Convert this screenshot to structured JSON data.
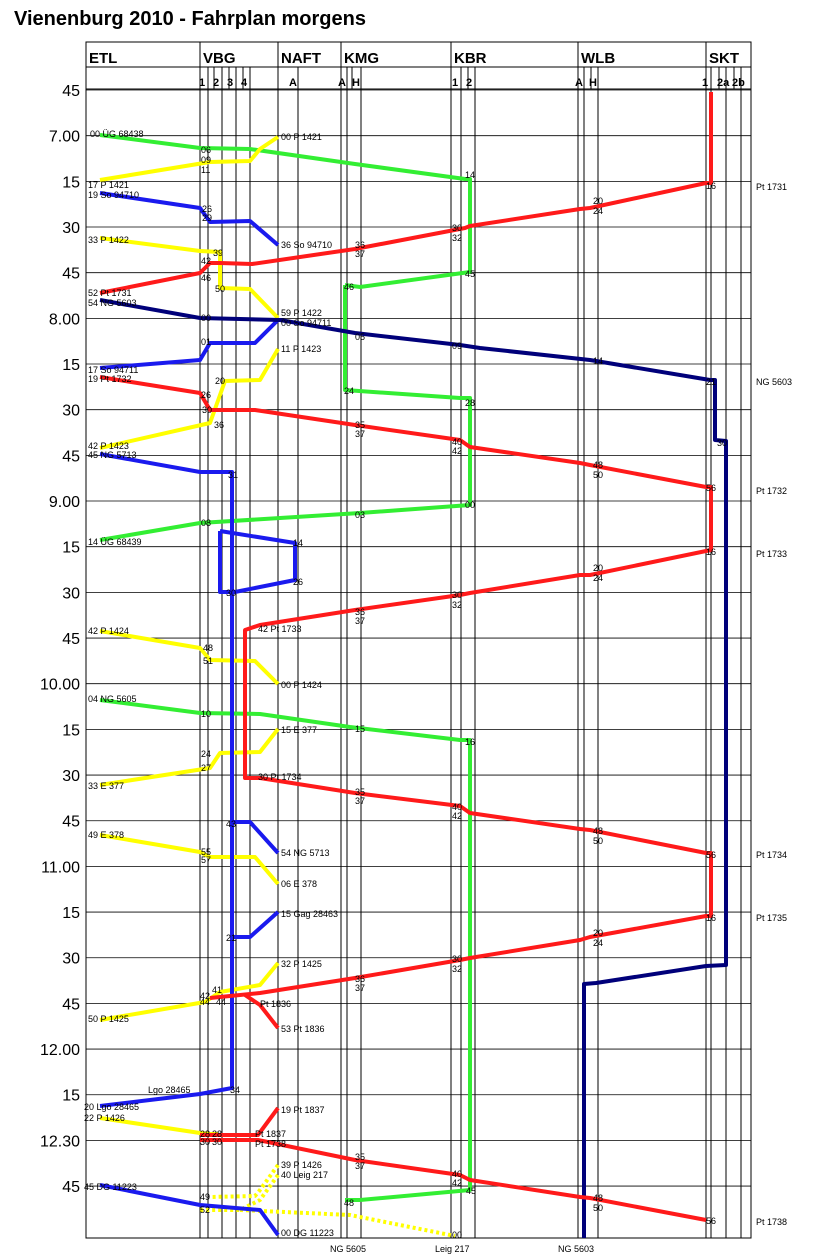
{
  "title": "Vienenburg 2010 - Fahrplan morgens",
  "stations": [
    {
      "id": "ETL",
      "name": "ETL",
      "tracks": []
    },
    {
      "id": "VBG",
      "name": "VBG",
      "tracks": [
        "1",
        "2",
        "3",
        "4"
      ]
    },
    {
      "id": "NAFT",
      "name": "NAFT",
      "tracks": [
        "A"
      ]
    },
    {
      "id": "KMG",
      "name": "KMG",
      "tracks": [
        "A",
        "H"
      ]
    },
    {
      "id": "KBR",
      "name": "KBR",
      "tracks": [
        "1",
        "2"
      ]
    },
    {
      "id": "WLB",
      "name": "WLB",
      "tracks": [
        "A",
        "H"
      ]
    },
    {
      "id": "SKT",
      "name": "SKT",
      "tracks": [
        "1",
        "2a",
        "2b"
      ]
    }
  ],
  "time_labels": [
    "45",
    "7.00",
    "15",
    "30",
    "45",
    "8.00",
    "15",
    "30",
    "45",
    "9.00",
    "15",
    "30",
    "45",
    "10.00",
    "15",
    "30",
    "45",
    "11.00",
    "15",
    "30",
    "45",
    "12.00",
    "15",
    "12.30",
    "45"
  ],
  "colors": {
    "red": "#ff1a1a",
    "green": "#33ee33",
    "yellow": "#ffff00",
    "blue": "#1a1aee",
    "navy": "#00007a",
    "grid": "#000000"
  },
  "trains": [
    {
      "name": "ÜG 68438",
      "color": "green",
      "label": "00 ÜG 68438",
      "end_label": ""
    },
    {
      "name": "P 1421",
      "color": "yellow",
      "label": "17 P 1421",
      "end_label": "00  P 1421"
    },
    {
      "name": "So 94710",
      "color": "blue",
      "label": "19 So 94710",
      "end_label": "36 So 94710"
    },
    {
      "name": "P 1422",
      "color": "yellow",
      "label": "33 P 1422",
      "end_label": "59  P 1422"
    },
    {
      "name": "Pt 1731",
      "color": "red",
      "label": "52 Pt 1731",
      "end_label": "Pt 1731"
    },
    {
      "name": "NG 5603",
      "color": "navy",
      "label": "54 NG 5603",
      "end_label": "NG 5603"
    },
    {
      "name": "So 94711",
      "color": "blue",
      "label": "17 So 94711",
      "end_label": "00 So 94711"
    },
    {
      "name": "Pt 1732",
      "color": "red",
      "label": "19 Pt 1732",
      "end_label": "Pt 1732"
    },
    {
      "name": "P 1423",
      "color": "yellow",
      "label": "42 P 1423",
      "end_label": "11  P 1423"
    },
    {
      "name": "NG 5713",
      "color": "blue",
      "label": "45 NG 5713",
      "end_label": "54 NG 5713"
    },
    {
      "name": "ÜG 68439",
      "color": "green",
      "label": "14 ÜG 68439",
      "end_label": ""
    },
    {
      "name": "Pt 1733",
      "color": "red",
      "label": "42 Pt 1733",
      "end_label": "Pt 1733"
    },
    {
      "name": "P 1424",
      "color": "yellow",
      "label": "42 P 1424",
      "end_label": "00  P 1424"
    },
    {
      "name": "NG 5605",
      "color": "green",
      "label": "04 NG 5605",
      "end_label": "NG 5605"
    },
    {
      "name": "E 377",
      "color": "yellow",
      "label": "33 E 377",
      "end_label": "15 E 377"
    },
    {
      "name": "Pt 1734",
      "color": "red",
      "label": "30 Pt 1734",
      "end_label": "Pt 1734"
    },
    {
      "name": "E 378",
      "color": "yellow",
      "label": "49 E 378",
      "end_label": "06  E 378"
    },
    {
      "name": "Gag 28463",
      "color": "blue",
      "label": "",
      "end_label": "15  Gag 28463"
    },
    {
      "name": "Pt 1735",
      "color": "red",
      "label": "",
      "end_label": "Pt 1735"
    },
    {
      "name": "P 1425",
      "color": "yellow",
      "label": "50 P 1425",
      "end_label": "32  P 1425"
    },
    {
      "name": "Pt 1836",
      "color": "red",
      "label": "Pt 1836",
      "end_label": "53 Pt 1836"
    },
    {
      "name": "Lgo 28465",
      "color": "blue",
      "label": "20 Lgo 28465",
      "end_label": "Lgo 28465"
    },
    {
      "name": "P 1426",
      "color": "yellow",
      "label": "22 P 1426",
      "end_label": "39  P 1426"
    },
    {
      "name": "Pt 1837",
      "color": "red",
      "label": "Pt 1837",
      "end_label": "19  Pt 1837"
    },
    {
      "name": "Pt 1738",
      "color": "red",
      "label": "Pt 1738",
      "end_label": "Pt 1738"
    },
    {
      "name": "Leig 217",
      "color": "yellow",
      "label": "40  Leig 217",
      "end_label": "Leig 217"
    },
    {
      "name": "DG 11223",
      "color": "blue",
      "label": "45 DG 11223",
      "end_label": "00 DG 11223"
    }
  ],
  "bottom_labels": [
    "NG 5605",
    "Leig 217",
    "NG 5603"
  ],
  "minute_marks": [
    "00",
    "06",
    "09",
    "11",
    "14",
    "16",
    "17",
    "19",
    "20",
    "24",
    "26",
    "29",
    "30",
    "31",
    "32",
    "33",
    "34",
    "35",
    "36",
    "37",
    "39",
    "40",
    "41",
    "42",
    "43",
    "44",
    "45",
    "46",
    "48",
    "49",
    "50",
    "51",
    "52",
    "53",
    "54",
    "55",
    "56",
    "57",
    "59",
    "01",
    "03",
    "05",
    "08",
    "10",
    "12",
    "13",
    "15",
    "21",
    "22",
    "25",
    "27",
    "28",
    "38",
    "47",
    "58"
  ]
}
